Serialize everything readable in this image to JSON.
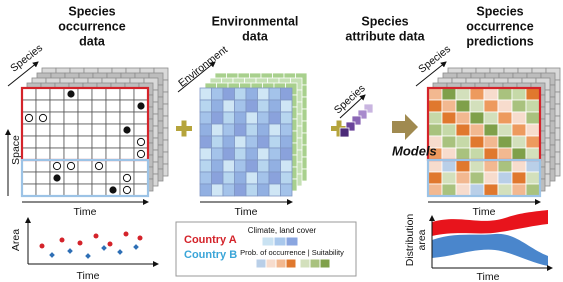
{
  "panels": [
    {
      "title_lines": [
        "Species",
        "occurrence",
        "data"
      ],
      "axis_depth": "Species",
      "axis_y": "Space",
      "axis_x": "Time"
    },
    {
      "title_lines": [
        "Environmental",
        "data"
      ],
      "axis_depth": "Environment",
      "axis_x": "Time"
    },
    {
      "title_lines": [
        "Species",
        "attribute data"
      ],
      "axis_depth": "Species",
      "method": "Models"
    },
    {
      "title_lines": [
        "Species",
        "occurrence",
        "predictions"
      ],
      "axis_depth": "Species",
      "axis_x": "Time"
    }
  ],
  "bottom": {
    "left_chart": {
      "y_label": "Area",
      "x_label": "Time"
    },
    "legend": {
      "country_a": "Country A",
      "country_b": "Country B",
      "env_label": "Climate,  land cover",
      "pred_label": "Prob. of occurrence | Suitability"
    },
    "right_chart": {
      "y_label_lines": [
        "Distribution",
        "area"
      ],
      "x_label": "Time"
    }
  }
}
